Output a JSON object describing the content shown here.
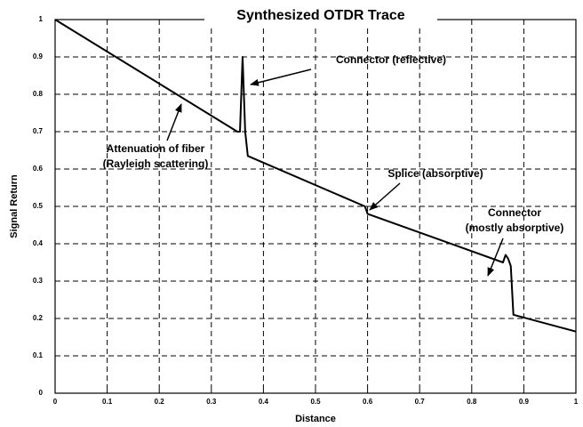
{
  "chart_data": {
    "type": "line",
    "title": "Synthesized OTDR Trace",
    "x_label": "Distance",
    "y_label": "Signal Return",
    "x": [
      0,
      0.35,
      0.355,
      0.36,
      0.365,
      0.37,
      0.595,
      0.6,
      0.86,
      0.865,
      0.87,
      0.875,
      0.88,
      1
    ],
    "series": [
      {
        "color": "#000000",
        "values": [
          1,
          0.7,
          0.7,
          0.9,
          0.7,
          0.635,
          0.5,
          0.48,
          0.35,
          0.37,
          0.36,
          0.34,
          0.21,
          0.165
        ]
      }
    ],
    "xlim": [
      0,
      1
    ],
    "ylim": [
      0,
      1
    ],
    "xticks": [
      0,
      0.1,
      0.2,
      0.3,
      0.4,
      0.5,
      0.6,
      0.7,
      0.8,
      0.9,
      1
    ],
    "yticks": [
      0,
      0.1,
      0.2,
      0.3,
      0.4,
      0.5,
      0.6,
      0.7,
      0.8,
      0.9,
      1
    ],
    "grid": true,
    "annotations": [
      {
        "lines": [
          "Connector (reflective)"
        ]
      },
      {
        "lines": [
          "Attenuation of fiber",
          "(Rayleigh scattering)"
        ]
      },
      {
        "lines": [
          "Splice (absorptive)"
        ]
      },
      {
        "lines": [
          "Connector",
          "(mostly absorptive)"
        ]
      }
    ]
  }
}
